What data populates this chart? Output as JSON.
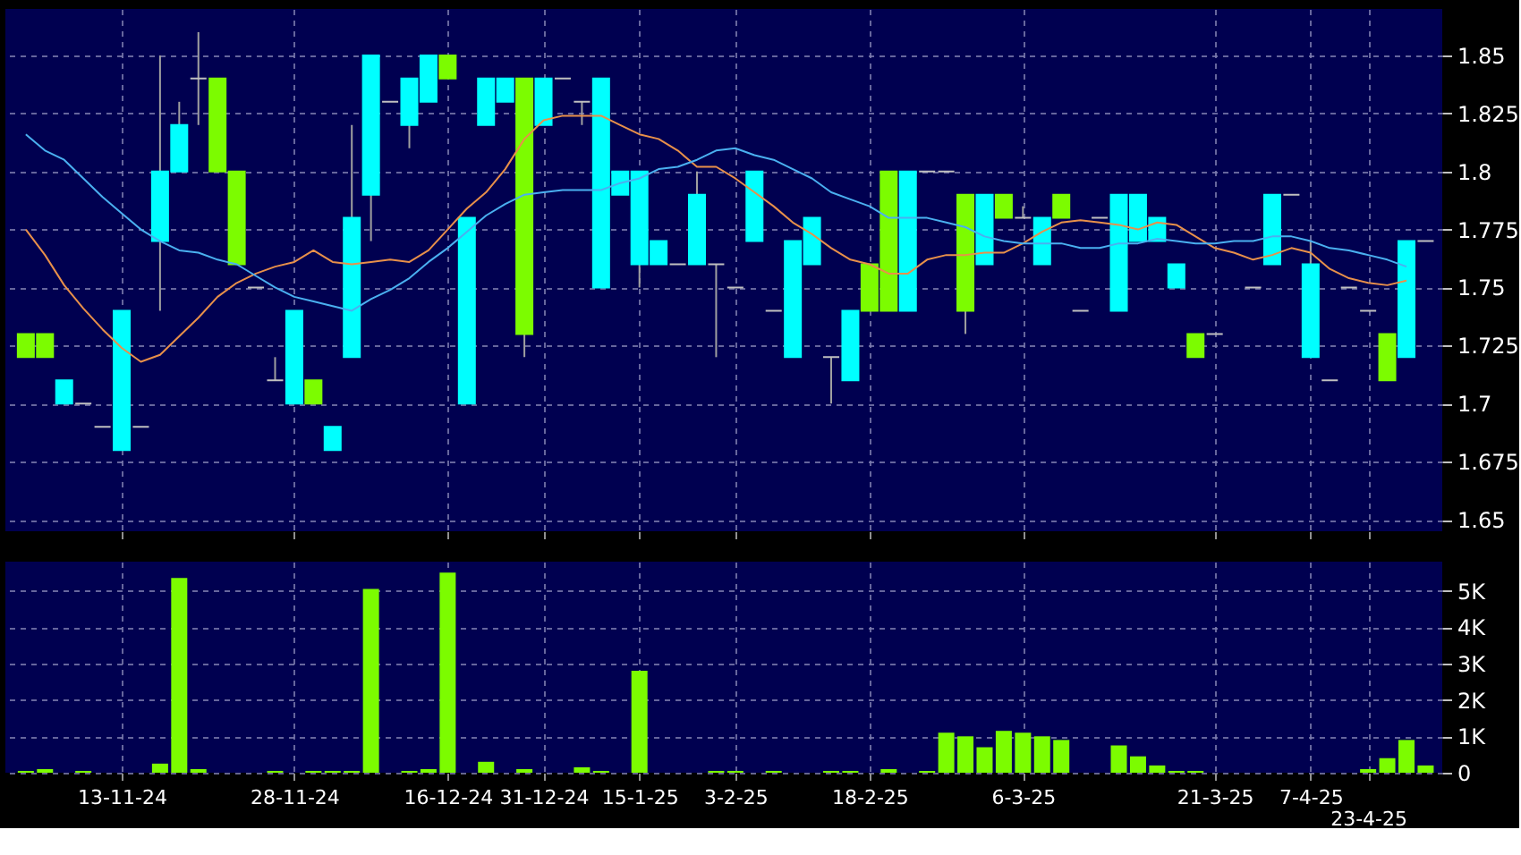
{
  "chart_data": [
    {
      "type": "candlestick",
      "categories": [
        null,
        null,
        null,
        null,
        null,
        null,
        null,
        null,
        null,
        null,
        null,
        null,
        null,
        null,
        null,
        null,
        null,
        null,
        null,
        null,
        null,
        null,
        null,
        null,
        null,
        null,
        null,
        null,
        null,
        null,
        null,
        null,
        null,
        null,
        null,
        null,
        null,
        null,
        null,
        null,
        null,
        null,
        null,
        null,
        null,
        null,
        null,
        null,
        null,
        null,
        null,
        null,
        null,
        null,
        null,
        null,
        null,
        null,
        null,
        null,
        null,
        null,
        null,
        null,
        null,
        null,
        null,
        null,
        null,
        null,
        null,
        null,
        null,
        null
      ],
      "ohlc": [
        [
          1.72,
          1.73,
          1.72,
          1.73
        ],
        [
          1.72,
          1.73,
          1.72,
          1.73
        ],
        [
          1.71,
          1.71,
          1.7,
          1.7
        ],
        [
          1.7,
          1.7,
          1.7,
          1.7
        ],
        [
          1.69,
          1.69,
          1.69,
          1.69
        ],
        [
          1.74,
          1.74,
          1.68,
          1.68
        ],
        [
          1.69,
          1.69,
          1.69,
          1.69
        ],
        [
          1.8,
          1.85,
          1.74,
          1.77
        ],
        [
          1.82,
          1.83,
          1.8,
          1.8
        ],
        [
          1.84,
          1.86,
          1.82,
          1.84
        ],
        [
          1.8,
          1.84,
          1.8,
          1.84
        ],
        [
          1.76,
          1.8,
          1.76,
          1.8
        ],
        [
          1.75,
          1.75,
          1.75,
          1.75
        ],
        [
          1.71,
          1.72,
          1.71,
          1.71
        ],
        [
          1.74,
          1.74,
          1.7,
          1.7
        ],
        [
          1.7,
          1.71,
          1.7,
          1.71
        ],
        [
          1.69,
          1.69,
          1.68,
          1.68
        ],
        [
          1.78,
          1.82,
          1.72,
          1.72
        ],
        [
          1.85,
          1.85,
          1.77,
          1.79
        ],
        [
          1.83,
          1.83,
          1.83,
          1.83
        ],
        [
          1.84,
          1.84,
          1.81,
          1.82
        ],
        [
          1.85,
          1.85,
          1.83,
          1.83
        ],
        [
          1.84,
          1.85,
          1.84,
          1.85
        ],
        [
          1.78,
          1.78,
          1.7,
          1.7
        ],
        [
          1.84,
          1.84,
          1.82,
          1.82
        ],
        [
          1.84,
          1.84,
          1.83,
          1.83
        ],
        [
          1.73,
          1.84,
          1.72,
          1.84
        ],
        [
          1.84,
          1.84,
          1.82,
          1.82
        ],
        [
          1.84,
          1.84,
          1.84,
          1.84
        ],
        [
          1.83,
          1.83,
          1.82,
          1.83
        ],
        [
          1.84,
          1.84,
          1.75,
          1.75
        ],
        [
          1.8,
          1.8,
          1.79,
          1.79
        ],
        [
          1.8,
          1.8,
          1.75,
          1.76
        ],
        [
          1.77,
          1.77,
          1.76,
          1.76
        ],
        [
          1.76,
          1.76,
          1.76,
          1.76
        ],
        [
          1.79,
          1.8,
          1.76,
          1.76
        ],
        [
          1.76,
          1.76,
          1.72,
          1.76
        ],
        [
          1.75,
          1.75,
          1.75,
          1.75
        ],
        [
          1.8,
          1.8,
          1.77,
          1.77
        ],
        [
          1.74,
          1.74,
          1.74,
          1.74
        ],
        [
          1.77,
          1.77,
          1.72,
          1.72
        ],
        [
          1.78,
          1.78,
          1.76,
          1.76
        ],
        [
          1.72,
          1.72,
          1.7,
          1.72
        ],
        [
          1.74,
          1.74,
          1.71,
          1.71
        ],
        [
          1.74,
          1.76,
          1.74,
          1.76
        ],
        [
          1.74,
          1.8,
          1.74,
          1.8
        ],
        [
          1.8,
          1.8,
          1.74,
          1.74
        ],
        [
          1.8,
          1.8,
          1.8,
          1.8
        ],
        [
          1.8,
          1.8,
          1.8,
          1.8
        ],
        [
          1.74,
          1.79,
          1.73,
          1.79
        ],
        [
          1.79,
          1.79,
          1.76,
          1.76
        ],
        [
          1.78,
          1.79,
          1.78,
          1.79
        ],
        [
          1.78,
          1.785,
          1.78,
          1.78
        ],
        [
          1.78,
          1.78,
          1.76,
          1.76
        ],
        [
          1.78,
          1.79,
          1.78,
          1.79
        ],
        [
          1.74,
          1.74,
          1.74,
          1.74
        ],
        [
          1.78,
          1.78,
          1.78,
          1.78
        ],
        [
          1.79,
          1.79,
          1.74,
          1.74
        ],
        [
          1.79,
          1.79,
          1.77,
          1.77
        ],
        [
          1.78,
          1.78,
          1.77,
          1.77
        ],
        [
          1.76,
          1.76,
          1.75,
          1.75
        ],
        [
          1.72,
          1.73,
          1.72,
          1.73
        ],
        [
          1.73,
          1.73,
          1.73,
          1.73
        ],
        null,
        [
          1.75,
          1.75,
          1.75,
          1.75
        ],
        [
          1.79,
          1.79,
          1.76,
          1.76
        ],
        [
          1.79,
          1.79,
          1.79,
          1.79
        ],
        [
          1.76,
          1.77,
          1.72,
          1.72
        ],
        [
          1.71,
          1.71,
          1.71,
          1.71
        ],
        [
          1.75,
          1.75,
          1.75,
          1.75
        ],
        [
          1.74,
          1.74,
          1.74,
          1.74
        ],
        [
          1.71,
          1.73,
          1.71,
          1.73
        ],
        [
          1.77,
          1.77,
          1.72,
          1.72
        ],
        [
          1.77,
          1.77,
          1.77,
          1.77
        ]
      ],
      "colors": [
        "#7cfc00",
        "#7cfc00",
        "#00ffff",
        "#c0c0c0",
        "#c0c0c0",
        "#00ffff",
        "#c0c0c0",
        "#00ffff",
        "#00ffff",
        "#c0c0c0",
        "#7cfc00",
        "#7cfc00",
        "#c0c0c0",
        "#c0c0c0",
        "#00ffff",
        "#7cfc00",
        "#00ffff",
        "#00ffff",
        "#00ffff",
        "#c0c0c0",
        "#00ffff",
        "#00ffff",
        "#7cfc00",
        "#00ffff",
        "#00ffff",
        "#00ffff",
        "#7cfc00",
        "#00ffff",
        "#c0c0c0",
        "#c0c0c0",
        "#00ffff",
        "#00ffff",
        "#00ffff",
        "#00ffff",
        "#c0c0c0",
        "#00ffff",
        "#c0c0c0",
        "#c0c0c0",
        "#00ffff",
        "#c0c0c0",
        "#00ffff",
        "#00ffff",
        "#c0c0c0",
        "#00ffff",
        "#7cfc00",
        "#7cfc00",
        "#00ffff",
        "#c0c0c0",
        "#c0c0c0",
        "#7cfc00",
        "#00ffff",
        "#7cfc00",
        "#c0c0c0",
        "#00ffff",
        "#7cfc00",
        "#c0c0c0",
        "#c0c0c0",
        "#00ffff",
        "#00ffff",
        "#00ffff",
        "#00ffff",
        "#7cfc00",
        "#c0c0c0",
        "#c0c0c0",
        "#c0c0c0",
        "#00ffff",
        "#c0c0c0",
        "#00ffff",
        "#c0c0c0",
        "#c0c0c0",
        "#c0c0c0",
        "#7cfc00",
        "#00ffff",
        "#c0c0c0"
      ],
      "series": [
        {
          "type": "line",
          "color": "#e8904a",
          "values": [
            1.775,
            1.764,
            1.751,
            1.741,
            1.732,
            1.724,
            1.718,
            1.721,
            1.729,
            1.737,
            1.746,
            1.752,
            1.756,
            1.759,
            1.761,
            1.766,
            1.761,
            1.76,
            1.761,
            1.762,
            1.761,
            1.766,
            1.775,
            1.784,
            1.791,
            1.801,
            1.814,
            1.822,
            1.824,
            1.824,
            1.824,
            1.82,
            1.816,
            1.814,
            1.809,
            1.802,
            1.802,
            1.797,
            1.791,
            1.785,
            1.778,
            1.773,
            1.767,
            1.762,
            1.76,
            1.756,
            1.756,
            1.762,
            1.764,
            1.764,
            1.765,
            1.765,
            1.769,
            1.774,
            1.778,
            1.779,
            1.778,
            1.777,
            1.775,
            1.778,
            1.777,
            1.772,
            1.767,
            1.765,
            1.762,
            1.764,
            1.767,
            1.765,
            1.758,
            1.754,
            1.752,
            1.751,
            1.753,
            null
          ]
        },
        {
          "type": "line",
          "color": "#4ab0f0",
          "values": [
            1.816,
            1.809,
            1.805,
            1.797,
            1.789,
            1.782,
            1.775,
            1.77,
            1.766,
            1.765,
            1.762,
            1.76,
            1.755,
            1.75,
            1.746,
            1.744,
            1.742,
            1.74,
            1.745,
            1.749,
            1.754,
            1.761,
            1.767,
            1.774,
            1.781,
            1.786,
            1.79,
            1.791,
            1.792,
            1.792,
            1.792,
            1.795,
            1.797,
            1.801,
            1.802,
            1.805,
            1.809,
            1.81,
            1.807,
            1.805,
            1.801,
            1.797,
            1.791,
            1.788,
            1.785,
            1.78,
            1.78,
            1.78,
            1.778,
            1.776,
            1.772,
            1.77,
            1.769,
            1.769,
            1.769,
            1.767,
            1.767,
            1.769,
            1.769,
            1.771,
            1.77,
            1.769,
            1.769,
            1.77,
            1.77,
            1.772,
            1.772,
            1.77,
            1.767,
            1.766,
            1.764,
            1.762,
            1.759,
            null
          ]
        }
      ],
      "ylim": [
        1.645,
        1.87
      ],
      "yticks": [
        1.65,
        1.675,
        1.7,
        1.725,
        1.75,
        1.775,
        1.8,
        1.825,
        1.85
      ],
      "grid": true,
      "tick_labels": "y"
    },
    {
      "type": "bar",
      "categories": [
        null,
        null,
        null,
        null,
        null,
        "13-11-24",
        null,
        null,
        null,
        null,
        null,
        null,
        null,
        null,
        "28-11-24",
        null,
        null,
        null,
        null,
        null,
        null,
        null,
        "16-12-24",
        null,
        null,
        null,
        null,
        "31-12-24",
        null,
        null,
        null,
        null,
        "15-1-25",
        null,
        null,
        null,
        null,
        "3-2-25",
        null,
        null,
        null,
        null,
        null,
        null,
        "18-2-25",
        null,
        null,
        null,
        null,
        null,
        null,
        null,
        "6-3-25",
        null,
        null,
        null,
        null,
        null,
        null,
        null,
        null,
        null,
        "21-3-25",
        null,
        null,
        null,
        null,
        "7-4-25",
        null,
        null,
        "23-4-25",
        null,
        null,
        null
      ],
      "values": [
        50,
        100,
        0,
        50,
        0,
        0,
        0,
        250,
        5350,
        100,
        0,
        0,
        0,
        50,
        0,
        50,
        50,
        50,
        5050,
        0,
        50,
        100,
        5500,
        0,
        300,
        0,
        100,
        0,
        0,
        150,
        50,
        0,
        2800,
        0,
        0,
        0,
        50,
        50,
        0,
        50,
        0,
        0,
        50,
        50,
        0,
        100,
        0,
        50,
        1100,
        1000,
        700,
        1150,
        1100,
        1000,
        900,
        0,
        0,
        750,
        450,
        200,
        50,
        50,
        0,
        0,
        0,
        0,
        0,
        0,
        0,
        0,
        100,
        400,
        900,
        200
      ],
      "color": "#7cfc00",
      "ylim": [
        0,
        5800
      ],
      "yticks": [
        0,
        {
          "value": 1000,
          "label": "1K"
        },
        {
          "value": 2000,
          "label": "2K"
        },
        {
          "value": 3000,
          "label": "3K"
        },
        {
          "value": 4000,
          "label": "4K"
        },
        {
          "value": 5000,
          "label": "5K"
        }
      ],
      "grid": true
    }
  ]
}
